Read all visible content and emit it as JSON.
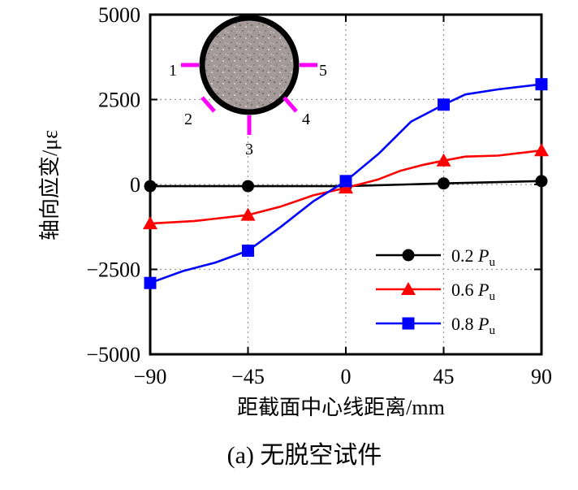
{
  "chart_data": {
    "type": "line",
    "title": "",
    "caption": "(a) 无脱空试件",
    "xlabel": "距截面中心线距离/mm",
    "ylabel": "轴向应变/με",
    "xlim": [
      -90,
      90
    ],
    "ylim": [
      -5000,
      5000
    ],
    "x_ticks": [
      -90,
      -45,
      0,
      45,
      90
    ],
    "x_tick_labels": [
      "−90",
      "−45",
      "0",
      "45",
      "90"
    ],
    "y_ticks": [
      -5000,
      -2500,
      0,
      2500,
      5000
    ],
    "y_tick_labels": [
      "−5000",
      "−2500",
      "0",
      "2500",
      "5000"
    ],
    "grid_x": [
      -45,
      0,
      45
    ],
    "grid_y": [
      -2500,
      0,
      2500
    ],
    "legend": {
      "position": "lower-right"
    },
    "series": [
      {
        "name": "0.2 Pu",
        "label_num": "0.2",
        "label_sym": "P",
        "label_sub": "u",
        "color": "#000000",
        "marker": "circle",
        "points": [
          [
            -90,
            -50
          ],
          [
            -45,
            -50
          ],
          [
            0,
            -50
          ],
          [
            45,
            30
          ],
          [
            90,
            100
          ]
        ],
        "curve": [
          [
            -90,
            -50
          ],
          [
            -45,
            -50
          ],
          [
            0,
            -50
          ],
          [
            45,
            30
          ],
          [
            90,
            100
          ]
        ]
      },
      {
        "name": "0.6 Pu",
        "label_num": "0.6",
        "label_sym": "P",
        "label_sub": "u",
        "color": "#ff0000",
        "marker": "triangle",
        "points": [
          [
            -90,
            -1150
          ],
          [
            -45,
            -900
          ],
          [
            0,
            -100
          ],
          [
            45,
            700
          ],
          [
            90,
            1000
          ]
        ],
        "curve": [
          [
            -90,
            -1150
          ],
          [
            -70,
            -1080
          ],
          [
            -45,
            -900
          ],
          [
            -30,
            -650
          ],
          [
            -15,
            -320
          ],
          [
            0,
            -100
          ],
          [
            15,
            150
          ],
          [
            25,
            400
          ],
          [
            35,
            570
          ],
          [
            45,
            700
          ],
          [
            55,
            820
          ],
          [
            70,
            850
          ],
          [
            90,
            1000
          ]
        ]
      },
      {
        "name": "0.8 Pu",
        "label_num": "0.8",
        "label_sym": "P",
        "label_sub": "u",
        "color": "#0000ff",
        "marker": "square",
        "points": [
          [
            -90,
            -2900
          ],
          [
            -45,
            -1950
          ],
          [
            0,
            100
          ],
          [
            45,
            2350
          ],
          [
            90,
            2950
          ]
        ],
        "curve": [
          [
            -90,
            -2900
          ],
          [
            -75,
            -2550
          ],
          [
            -60,
            -2300
          ],
          [
            -45,
            -1950
          ],
          [
            -30,
            -1250
          ],
          [
            -15,
            -500
          ],
          [
            0,
            100
          ],
          [
            15,
            900
          ],
          [
            30,
            1850
          ],
          [
            45,
            2350
          ],
          [
            55,
            2650
          ],
          [
            70,
            2800
          ],
          [
            90,
            2950
          ]
        ]
      }
    ],
    "inset": {
      "description_labels": [
        "1",
        "2",
        "3",
        "4",
        "5"
      ],
      "gauge_color": "#ff00ff"
    }
  }
}
